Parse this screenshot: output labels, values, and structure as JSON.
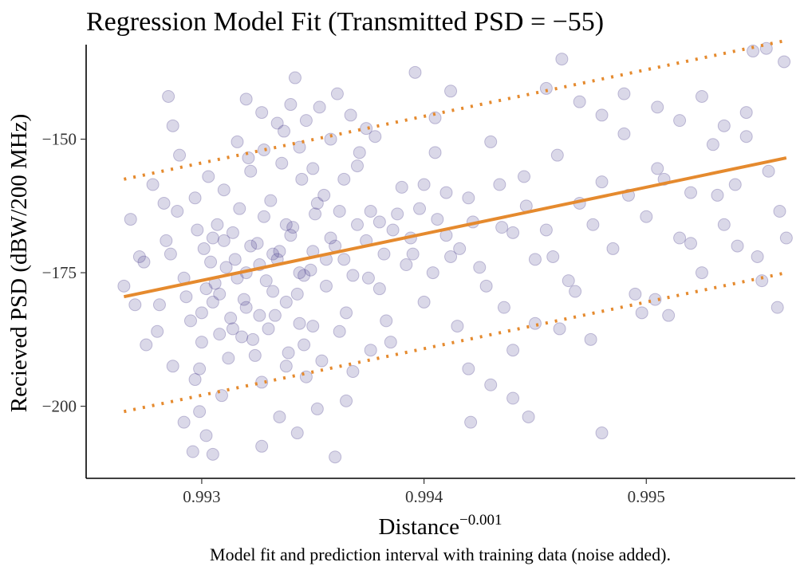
{
  "chart_data": {
    "type": "scatter",
    "title": "Regression Model Fit (Transmitted PSD = −55)",
    "xlabel": "Distance",
    "xlabel_superscript": "−0.001",
    "ylabel": "Recieved PSD (dBW/200 MHz)",
    "caption": "Model fit and prediction interval with training data (noise added).",
    "xlim": [
      0.99248,
      0.99567
    ],
    "ylim": [
      -213.5,
      -132.3
    ],
    "x_ticks": [
      0.993,
      0.994,
      0.995
    ],
    "x_tick_labels": [
      "0.993",
      "0.994",
      "0.995"
    ],
    "y_ticks": [
      -150,
      -175,
      -200
    ],
    "y_tick_labels": [
      "−150",
      "−175",
      "−200"
    ],
    "grid": false,
    "legend": "none",
    "colors": {
      "points": "#483d8b",
      "fit": "#e58a2e"
    },
    "series": [
      {
        "kind": "points",
        "points": [
          [
            0.99265,
            -177.5
          ],
          [
            0.99268,
            -165.0
          ],
          [
            0.99272,
            -172.0
          ],
          [
            0.99275,
            -188.5
          ],
          [
            0.99278,
            -158.5
          ],
          [
            0.99281,
            -181.0
          ],
          [
            0.99284,
            -169.0
          ],
          [
            0.99287,
            -192.5
          ],
          [
            0.99289,
            -163.5
          ],
          [
            0.99292,
            -176.0
          ],
          [
            0.99295,
            -184.0
          ],
          [
            0.99297,
            -161.0
          ],
          [
            0.99299,
            -193.0
          ],
          [
            0.99301,
            -170.5
          ],
          [
            0.99303,
            -157.0
          ],
          [
            0.99305,
            -180.5
          ],
          [
            0.99307,
            -166.0
          ],
          [
            0.99309,
            -198.0
          ],
          [
            0.99311,
            -174.0
          ],
          [
            0.99313,
            -183.5
          ],
          [
            0.99285,
            -142.0
          ],
          [
            0.99287,
            -147.5
          ],
          [
            0.9929,
            -153.0
          ],
          [
            0.99283,
            -162.0
          ],
          [
            0.99297,
            -195.0
          ],
          [
            0.99299,
            -201.0
          ],
          [
            0.99302,
            -178.0
          ],
          [
            0.99305,
            -168.5
          ],
          [
            0.99308,
            -186.5
          ],
          [
            0.9931,
            -159.5
          ],
          [
            0.99312,
            -191.0
          ],
          [
            0.99315,
            -172.5
          ],
          [
            0.99317,
            -163.0
          ],
          [
            0.99319,
            -180.0
          ],
          [
            0.99321,
            -153.5
          ],
          [
            0.99323,
            -187.5
          ],
          [
            0.99325,
            -169.5
          ],
          [
            0.99327,
            -195.5
          ],
          [
            0.99329,
            -176.5
          ],
          [
            0.99331,
            -161.5
          ],
          [
            0.99333,
            -183.0
          ],
          [
            0.99335,
            -171.0
          ],
          [
            0.99337,
            -148.5
          ],
          [
            0.99339,
            -190.0
          ],
          [
            0.99341,
            -166.5
          ],
          [
            0.99343,
            -179.0
          ],
          [
            0.99345,
            -157.5
          ],
          [
            0.99347,
            -194.5
          ],
          [
            0.99349,
            -174.5
          ],
          [
            0.99351,
            -164.0
          ],
          [
            0.99292,
            -203.0
          ],
          [
            0.99296,
            -208.5
          ],
          [
            0.99302,
            -205.5
          ],
          [
            0.99305,
            -209.0
          ],
          [
            0.99327,
            -207.5
          ],
          [
            0.99335,
            -202.0
          ],
          [
            0.99343,
            -205.0
          ],
          [
            0.9936,
            -209.5
          ],
          [
            0.99365,
            -199.0
          ],
          [
            0.99352,
            -200.5
          ],
          [
            0.9932,
            -142.5
          ],
          [
            0.99327,
            -145.0
          ],
          [
            0.99334,
            -147.0
          ],
          [
            0.9934,
            -143.5
          ],
          [
            0.99347,
            -146.5
          ],
          [
            0.99353,
            -144.0
          ],
          [
            0.99361,
            -141.5
          ],
          [
            0.99367,
            -145.5
          ],
          [
            0.99374,
            -148.0
          ],
          [
            0.99342,
            -138.5
          ],
          [
            0.99355,
            -160.5
          ],
          [
            0.9936,
            -170.0
          ],
          [
            0.99365,
            -182.5
          ],
          [
            0.9937,
            -155.0
          ],
          [
            0.99375,
            -176.0
          ],
          [
            0.9938,
            -165.5
          ],
          [
            0.99385,
            -188.0
          ],
          [
            0.9939,
            -159.0
          ],
          [
            0.99395,
            -171.5
          ],
          [
            0.994,
            -180.5
          ],
          [
            0.99405,
            -152.5
          ],
          [
            0.9941,
            -168.0
          ],
          [
            0.99415,
            -185.0
          ],
          [
            0.9942,
            -161.0
          ],
          [
            0.99425,
            -174.0
          ],
          [
            0.9943,
            -150.5
          ],
          [
            0.99435,
            -166.5
          ],
          [
            0.9944,
            -189.5
          ],
          [
            0.99445,
            -157.0
          ],
          [
            0.9945,
            -172.5
          ],
          [
            0.99396,
            -137.5
          ],
          [
            0.99405,
            -146.0
          ],
          [
            0.99412,
            -141.0
          ],
          [
            0.9942,
            -193.0
          ],
          [
            0.9943,
            -196.0
          ],
          [
            0.9944,
            -198.5
          ],
          [
            0.9945,
            -184.5
          ],
          [
            0.99455,
            -167.0
          ],
          [
            0.9946,
            -153.0
          ],
          [
            0.99465,
            -176.5
          ],
          [
            0.9947,
            -162.0
          ],
          [
            0.99475,
            -187.5
          ],
          [
            0.9948,
            -158.0
          ],
          [
            0.99485,
            -170.5
          ],
          [
            0.9949,
            -149.0
          ],
          [
            0.99495,
            -179.0
          ],
          [
            0.995,
            -164.5
          ],
          [
            0.99505,
            -155.5
          ],
          [
            0.9951,
            -183.0
          ],
          [
            0.99515,
            -168.5
          ],
          [
            0.9952,
            -160.0
          ],
          [
            0.99525,
            -175.0
          ],
          [
            0.9953,
            -151.0
          ],
          [
            0.99535,
            -166.0
          ],
          [
            0.9954,
            -158.5
          ],
          [
            0.99545,
            -149.5
          ],
          [
            0.9955,
            -172.0
          ],
          [
            0.99555,
            -156.0
          ],
          [
            0.9956,
            -163.5
          ],
          [
            0.99563,
            -168.5
          ],
          [
            0.99455,
            -140.5
          ],
          [
            0.99462,
            -135.0
          ],
          [
            0.9947,
            -143.0
          ],
          [
            0.9948,
            -145.5
          ],
          [
            0.9949,
            -141.5
          ],
          [
            0.99505,
            -144.0
          ],
          [
            0.99515,
            -146.5
          ],
          [
            0.99525,
            -142.0
          ],
          [
            0.99535,
            -147.5
          ],
          [
            0.99545,
            -145.0
          ],
          [
            0.99548,
            -133.5
          ],
          [
            0.99554,
            -133.0
          ],
          [
            0.99562,
            -135.5
          ],
          [
            0.99552,
            -176.5
          ],
          [
            0.99559,
            -181.5
          ],
          [
            0.99504,
            -180.0
          ],
          [
            0.99498,
            -182.5
          ],
          [
            0.99468,
            -178.5
          ],
          [
            0.99461,
            -185.5
          ],
          [
            0.99421,
            -203.0
          ],
          [
            0.99447,
            -202.0
          ],
          [
            0.9948,
            -205.0
          ],
          [
            0.99436,
            -181.5
          ],
          [
            0.99458,
            -172.0
          ],
          [
            0.99476,
            -166.0
          ],
          [
            0.99492,
            -160.5
          ],
          [
            0.99508,
            -157.5
          ],
          [
            0.9952,
            -169.5
          ],
          [
            0.99532,
            -160.5
          ],
          [
            0.99541,
            -170.0
          ],
          [
            0.99316,
            -150.5
          ],
          [
            0.99322,
            -156.0
          ],
          [
            0.99328,
            -152.0
          ],
          [
            0.99336,
            -154.5
          ],
          [
            0.99344,
            -151.5
          ],
          [
            0.9935,
            -155.5
          ],
          [
            0.99358,
            -150.0
          ],
          [
            0.99364,
            -157.5
          ],
          [
            0.99371,
            -152.5
          ],
          [
            0.99378,
            -149.5
          ],
          [
            0.99318,
            -187.0
          ],
          [
            0.99324,
            -190.5
          ],
          [
            0.9933,
            -185.5
          ],
          [
            0.99338,
            -192.5
          ],
          [
            0.99346,
            -188.5
          ],
          [
            0.99354,
            -191.5
          ],
          [
            0.99362,
            -186.0
          ],
          [
            0.99368,
            -193.5
          ],
          [
            0.99376,
            -189.5
          ],
          [
            0.99383,
            -184.0
          ],
          [
            0.9927,
            -181.0
          ],
          [
            0.99274,
            -173.0
          ],
          [
            0.9928,
            -186.0
          ],
          [
            0.99286,
            -171.5
          ],
          [
            0.99293,
            -179.5
          ],
          [
            0.993,
            -188.0
          ],
          [
            0.99306,
            -177.0
          ],
          [
            0.99314,
            -167.5
          ],
          [
            0.9932,
            -181.5
          ],
          [
            0.99326,
            -173.5
          ],
          [
            0.99332,
            -178.5
          ],
          [
            0.99338,
            -166.0
          ],
          [
            0.99344,
            -184.5
          ],
          [
            0.9935,
            -171.0
          ],
          [
            0.99356,
            -177.5
          ],
          [
            0.99362,
            -163.5
          ],
          [
            0.99368,
            -175.5
          ],
          [
            0.99374,
            -169.0
          ],
          [
            0.9938,
            -178.0
          ],
          [
            0.99386,
            -167.0
          ],
          [
            0.99392,
            -173.5
          ],
          [
            0.99398,
            -163.0
          ],
          [
            0.99404,
            -175.0
          ],
          [
            0.9941,
            -160.0
          ],
          [
            0.99416,
            -170.5
          ],
          [
            0.99422,
            -165.5
          ],
          [
            0.99428,
            -177.5
          ],
          [
            0.99434,
            -158.5
          ],
          [
            0.9944,
            -167.5
          ],
          [
            0.99446,
            -162.5
          ],
          [
            0.99298,
            -167.0
          ],
          [
            0.99304,
            -173.0
          ],
          [
            0.9931,
            -169.0
          ],
          [
            0.99316,
            -176.0
          ],
          [
            0.99322,
            -170.0
          ],
          [
            0.99328,
            -164.5
          ],
          [
            0.99334,
            -172.5
          ],
          [
            0.9934,
            -168.0
          ],
          [
            0.99346,
            -175.5
          ],
          [
            0.99352,
            -162.0
          ],
          [
            0.99358,
            -168.5
          ],
          [
            0.99364,
            -172.5
          ],
          [
            0.9937,
            -166.0
          ],
          [
            0.99376,
            -163.5
          ],
          [
            0.99382,
            -171.5
          ],
          [
            0.99388,
            -164.0
          ],
          [
            0.99394,
            -168.5
          ],
          [
            0.994,
            -158.5
          ],
          [
            0.99406,
            -165.0
          ],
          [
            0.99412,
            -172.0
          ],
          [
            0.993,
            -182.5
          ],
          [
            0.99308,
            -179.0
          ],
          [
            0.99314,
            -185.5
          ],
          [
            0.9932,
            -175.0
          ],
          [
            0.99326,
            -183.0
          ],
          [
            0.99332,
            -171.5
          ],
          [
            0.99338,
            -180.5
          ],
          [
            0.99344,
            -175.0
          ],
          [
            0.9935,
            -185.0
          ],
          [
            0.99356,
            -172.5
          ]
        ]
      },
      {
        "kind": "fit-line",
        "points": [
          [
            0.99265,
            -179.5
          ],
          [
            0.99563,
            -153.5
          ]
        ]
      },
      {
        "kind": "interval-upper",
        "points": [
          [
            0.99265,
            -157.5
          ],
          [
            0.99563,
            -131.5
          ]
        ]
      },
      {
        "kind": "interval-lower",
        "points": [
          [
            0.99265,
            -201.0
          ],
          [
            0.99563,
            -175.0
          ]
        ]
      }
    ]
  }
}
